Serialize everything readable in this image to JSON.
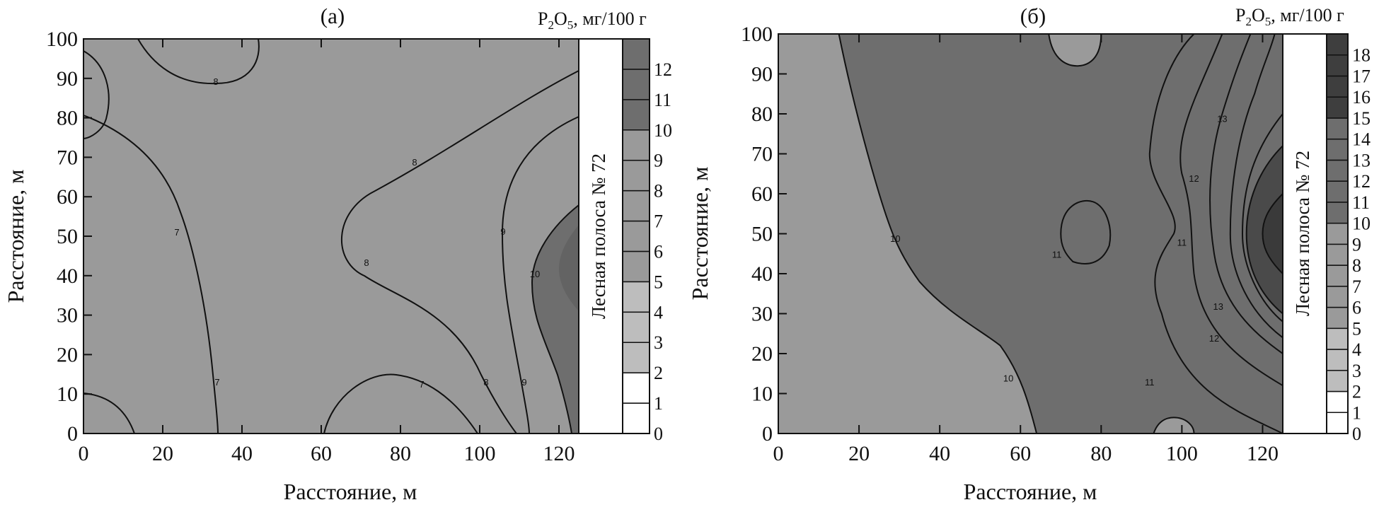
{
  "chart_data": [
    {
      "type": "contour",
      "panel_label": "(а)",
      "legend_title": "P2O5, мг/100 г",
      "legend_title_parts": {
        "prefix": "P",
        "sub1": "2",
        "mid": "O",
        "sub2": "5",
        "suffix": ", мг/100 г"
      },
      "xlabel": "Расстояние, м",
      "ylabel": "Расстояние, м",
      "xlim": [
        0,
        125
      ],
      "ylim": [
        0,
        100
      ],
      "x_ticks": [
        0,
        20,
        40,
        60,
        80,
        100,
        120
      ],
      "y_ticks": [
        0,
        10,
        20,
        30,
        40,
        50,
        60,
        70,
        80,
        90,
        100
      ],
      "strip_label": "Лесная полоса № 72",
      "colorbar_ticks": [
        0,
        1,
        2,
        3,
        4,
        5,
        6,
        7,
        8,
        9,
        10,
        11,
        12
      ],
      "colorbar_max": 13,
      "contour_labels": [
        "7",
        "7",
        "7",
        "8",
        "8",
        "8",
        "8",
        "9",
        "9",
        "10"
      ],
      "colors": {
        "low": "#ffffff",
        "mid_light": "#bdbdbd",
        "mid": "#9a9a9a",
        "high": "#6e6e6e"
      }
    },
    {
      "type": "contour",
      "panel_label": "(б)",
      "legend_title": "P2O5, мг/100 г",
      "legend_title_parts": {
        "prefix": "P",
        "sub1": "2",
        "mid": "O",
        "sub2": "5",
        "suffix": ", мг/100 г"
      },
      "xlabel": "Расстояние, м",
      "ylabel": "Расстояние, м",
      "xlim": [
        0,
        125
      ],
      "ylim": [
        0,
        100
      ],
      "x_ticks": [
        0,
        20,
        40,
        60,
        80,
        100,
        120
      ],
      "y_ticks": [
        0,
        10,
        20,
        30,
        40,
        50,
        60,
        70,
        80,
        90,
        100
      ],
      "strip_label": "Лесная полоса № 72",
      "colorbar_ticks": [
        0,
        1,
        2,
        3,
        4,
        5,
        6,
        7,
        8,
        9,
        10,
        11,
        12,
        13,
        14,
        15,
        16,
        17,
        18
      ],
      "colorbar_tick_labels": [
        "0",
        "1",
        "2",
        "3",
        "4",
        "5",
        "6",
        "7",
        "8",
        "9",
        "10",
        "11",
        "12",
        "13",
        "14",
        "15",
        "16",
        "17",
        "18"
      ],
      "colorbar_max": 19,
      "contour_labels": [
        "10",
        "10",
        "11",
        "11",
        "11",
        "12",
        "12",
        "13",
        "13"
      ],
      "colors": {
        "low": "#9a9a9a",
        "mid": "#6e6e6e",
        "high": "#3e3e3e"
      }
    }
  ]
}
